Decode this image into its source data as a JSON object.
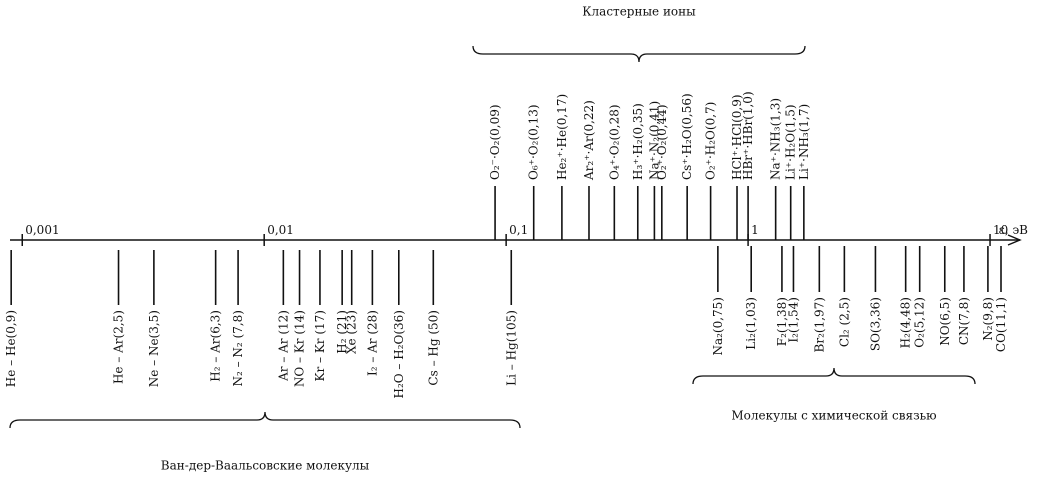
{
  "chart_data": {
    "type": "spectrum",
    "log_x": true,
    "x_label": "ε, эВ",
    "xlim": [
      0.00089,
      13.3
    ],
    "xticks": [
      {
        "value": 0.001,
        "label": "0,001"
      },
      {
        "value": 0.01,
        "label": "0,01"
      },
      {
        "value": 0.1,
        "label": "0,1"
      },
      1,
      10
    ],
    "series": [
      {
        "name": "Кластерные ионы",
        "side": "above",
        "labels": [
          "O₂⁻·O₂(0,09)",
          "O₆⁺·O₂(0,13)",
          "He₂⁺·He(0,17)",
          "Ar₂⁺·Ar(0,22)",
          "O₄⁺·O₂(0,28)",
          "H₃⁺·H₂(0,35)",
          "Na⁺·N₂(0,41)",
          "O₂⁺·O₂(0,44)",
          "Cs⁺·H₂O(0,56)",
          "O₂⁺·H₂O(0,7)",
          "HCl⁺·HCl(0,9)",
          "HBr⁺·HBr(1,0)",
          "Na⁺·NH₃(1,3)",
          "Li⁺·H₂O(1,5)",
          "Li⁺·NH₃(1,7)"
        ],
        "values": [
          0.09,
          0.13,
          0.17,
          0.22,
          0.28,
          0.35,
          0.41,
          0.44,
          0.56,
          0.7,
          0.9,
          1.0,
          1.3,
          1.5,
          1.7
        ]
      },
      {
        "name": "Ван-дер-Ваальсовские молекулы",
        "side": "below",
        "labels": [
          "He – He(0,9)",
          "He – Ar(2,5)",
          "Ne – Ne(3,5)",
          "H₂ – Ar(6,3)",
          "N₂ – N₂ (7,8)",
          "Ar – Ar (12)",
          "NO – Kr (14)",
          "Kr – Kr (17)",
          "H₂ (21)",
          "Xe (23)",
          "I₂ – Ar (28)",
          "H₂O – H₂O(36)",
          "Cs – Hg (50)",
          "Li – Hg(105)"
        ],
        "values": [
          0.0009,
          0.0025,
          0.0035,
          0.0063,
          0.0078,
          0.012,
          0.014,
          0.017,
          0.021,
          0.023,
          0.028,
          0.036,
          0.05,
          0.105
        ]
      },
      {
        "name": "Молекулы с химической связью",
        "side": "below",
        "labels": [
          "Na₂(0,75)",
          "Li₂(1,03)",
          "F₂(1,38)",
          "I₂(1,54)",
          "Br₂(1,97)",
          "Cl₂ (2,5)",
          "SO(3,36)",
          "H₂(4,48)",
          "O₂(5,12)",
          "NO(6,5)",
          "CN(7,8)",
          "N₂(9,8)",
          "CO(11,1)"
        ],
        "values": [
          0.75,
          1.03,
          1.38,
          1.54,
          1.97,
          2.5,
          3.36,
          4.48,
          5.12,
          6.5,
          7.8,
          9.8,
          11.1
        ]
      }
    ]
  }
}
